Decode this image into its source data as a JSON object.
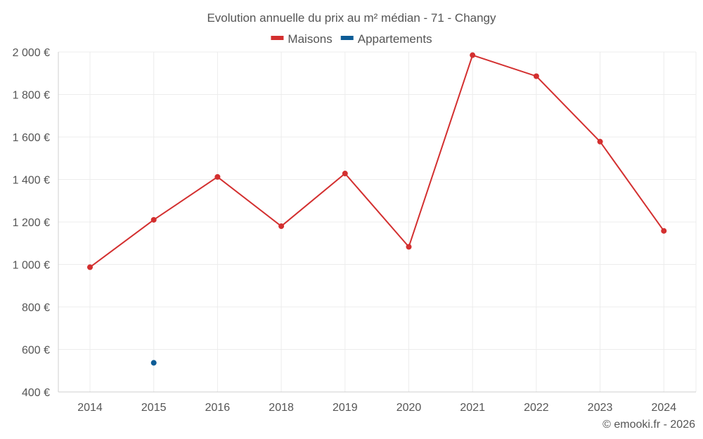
{
  "chart_data": {
    "type": "line",
    "title": "Evolution annuelle du prix au m² médian - 71 - Changy",
    "categories": [
      "2014",
      "2015",
      "2016",
      "2018",
      "2019",
      "2020",
      "2021",
      "2022",
      "2023",
      "2024"
    ],
    "series": [
      {
        "name": "Maisons",
        "color": "#d32f2f",
        "values": [
          987,
          1210,
          1412,
          1180,
          1428,
          1083,
          1985,
          1886,
          1578,
          1158
        ]
      },
      {
        "name": "Appartements",
        "color": "#0d5c96",
        "values": [
          null,
          537,
          null,
          null,
          null,
          null,
          null,
          null,
          null,
          null
        ]
      }
    ],
    "ylim": [
      400,
      2000
    ],
    "yticks": [
      400,
      600,
      800,
      1000,
      1200,
      1400,
      1600,
      1800,
      2000
    ],
    "ytick_labels": [
      "400 €",
      "600 €",
      "800 €",
      "1 000 €",
      "1 200 €",
      "1 400 €",
      "1 600 €",
      "1 800 €",
      "2 000 €"
    ],
    "xlabel": "",
    "ylabel": "",
    "grid": true,
    "legend_position": "top-center"
  },
  "credit": "© emooki.fr - 2026"
}
